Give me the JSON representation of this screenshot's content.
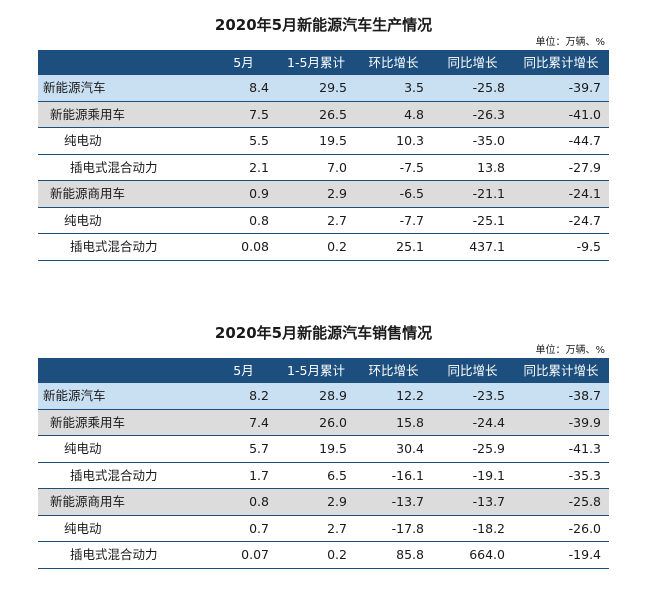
{
  "production": {
    "title": "2020年5月新能源汽车生产情况",
    "unit": "单位：万辆、%",
    "headers": [
      "",
      "5月",
      "1-5月累计",
      "环比增长",
      "同比增长",
      "同比累计增长"
    ],
    "rows": [
      {
        "name": "新能源汽车",
        "level": 0,
        "values": [
          "8.4",
          "29.5",
          "3.5",
          "-25.8",
          "-39.7"
        ]
      },
      {
        "name": "新能源乘用车",
        "level": 1,
        "values": [
          "7.5",
          "26.5",
          "4.8",
          "-26.3",
          "-41.0"
        ]
      },
      {
        "name": "纯电动",
        "level": 2,
        "values": [
          "5.5",
          "19.5",
          "10.3",
          "-35.0",
          "-44.7"
        ]
      },
      {
        "name": "插电式混合动力",
        "level": 3,
        "values": [
          "2.1",
          "7.0",
          "-7.5",
          "13.8",
          "-27.9"
        ]
      },
      {
        "name": "新能源商用车",
        "level": 1,
        "values": [
          "0.9",
          "2.9",
          "-6.5",
          "-21.1",
          "-24.1"
        ]
      },
      {
        "name": "纯电动",
        "level": 2,
        "values": [
          "0.8",
          "2.7",
          "-7.7",
          "-25.1",
          "-24.7"
        ]
      },
      {
        "name": "插电式混合动力",
        "level": 3,
        "values": [
          "0.08",
          "0.2",
          "25.1",
          "437.1",
          "-9.5"
        ]
      }
    ]
  },
  "sales": {
    "title": "2020年5月新能源汽车销售情况",
    "unit": "单位：万辆、%",
    "headers": [
      "",
      "5月",
      "1-5月累计",
      "环比增长",
      "同比增长",
      "同比累计增长"
    ],
    "rows": [
      {
        "name": "新能源汽车",
        "level": 0,
        "values": [
          "8.2",
          "28.9",
          "12.2",
          "-23.5",
          "-38.7"
        ]
      },
      {
        "name": "新能源乘用车",
        "level": 1,
        "values": [
          "7.4",
          "26.0",
          "15.8",
          "-24.4",
          "-39.9"
        ]
      },
      {
        "name": "纯电动",
        "level": 2,
        "values": [
          "5.7",
          "19.5",
          "30.4",
          "-25.9",
          "-41.3"
        ]
      },
      {
        "name": "插电式混合动力",
        "level": 3,
        "values": [
          "1.7",
          "6.5",
          "-16.1",
          "-19.1",
          "-35.3"
        ]
      },
      {
        "name": "新能源商用车",
        "level": 1,
        "values": [
          "0.8",
          "2.9",
          "-13.7",
          "-13.7",
          "-25.8"
        ]
      },
      {
        "name": "纯电动",
        "level": 2,
        "values": [
          "0.7",
          "2.7",
          "-17.8",
          "-18.2",
          "-26.0"
        ]
      },
      {
        "name": "插电式混合动力",
        "level": 3,
        "values": [
          "0.07",
          "0.2",
          "85.8",
          "664.0",
          "-19.4"
        ]
      }
    ]
  }
}
